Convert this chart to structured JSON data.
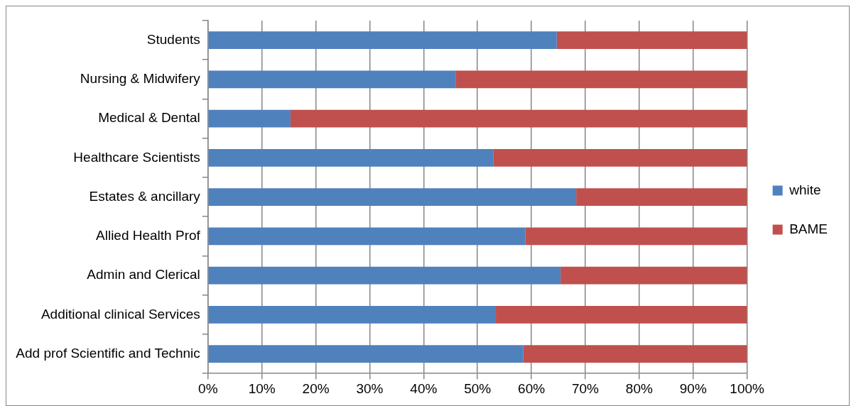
{
  "chart_data": {
    "type": "bar",
    "orientation": "horizontal",
    "stacked": true,
    "categories": [
      "Students",
      "Nursing & Midwifery",
      "Medical & Dental",
      "Healthcare Scientists",
      "Estates & ancillary",
      "Allied Health Prof",
      "Admin and Clerical",
      "Additional clinical Services",
      "Add prof Scientific and Technic"
    ],
    "series": [
      {
        "name": "white",
        "color": "#4f81bd",
        "values": [
          64.7,
          46.0,
          15.3,
          52.9,
          68.3,
          58.9,
          65.4,
          53.4,
          58.5
        ]
      },
      {
        "name": "BAME",
        "color": "#c0504d",
        "values": [
          35.3,
          54.0,
          84.7,
          47.1,
          31.7,
          41.1,
          34.6,
          46.6,
          41.5
        ]
      }
    ],
    "xlim": [
      0,
      100
    ],
    "xticks": [
      {
        "value": 0,
        "label": "0%"
      },
      {
        "value": 10,
        "label": "10%"
      },
      {
        "value": 20,
        "label": "20%"
      },
      {
        "value": 30,
        "label": "30%"
      },
      {
        "value": 40,
        "label": "40%"
      },
      {
        "value": 50,
        "label": "50%"
      },
      {
        "value": 60,
        "label": "60%"
      },
      {
        "value": 70,
        "label": "70%"
      },
      {
        "value": 80,
        "label": "80%"
      },
      {
        "value": 90,
        "label": "90%"
      },
      {
        "value": 100,
        "label": "100%"
      }
    ],
    "grid": "x",
    "legend": "right"
  }
}
